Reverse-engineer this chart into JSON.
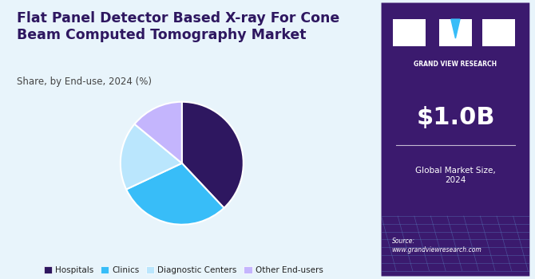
{
  "title_line1": "Flat Panel Detector Based X-ray For Cone",
  "title_line2": "Beam Computed Tomography Market",
  "subtitle": "Share, by End-use, 2024 (%)",
  "slices": [
    {
      "label": "Hospitals",
      "value": 38,
      "color": "#2e1760"
    },
    {
      "label": "Clinics",
      "value": 30,
      "color": "#38bdf8"
    },
    {
      "label": "Diagnostic Centers",
      "value": 18,
      "color": "#bae6fd"
    },
    {
      "label": "Other End-users",
      "value": 14,
      "color": "#c4b5fd"
    }
  ],
  "startangle": 90,
  "bg_left": "#e8f4fb",
  "bg_right": "#3b1a6e",
  "market_value": "$1.0B",
  "market_label": "Global Market Size,\n2024",
  "source_text": "Source:\nwww.grandviewresearch.com",
  "title_color": "#2e1760",
  "subtitle_color": "#444444",
  "legend_label_color": "#222222"
}
